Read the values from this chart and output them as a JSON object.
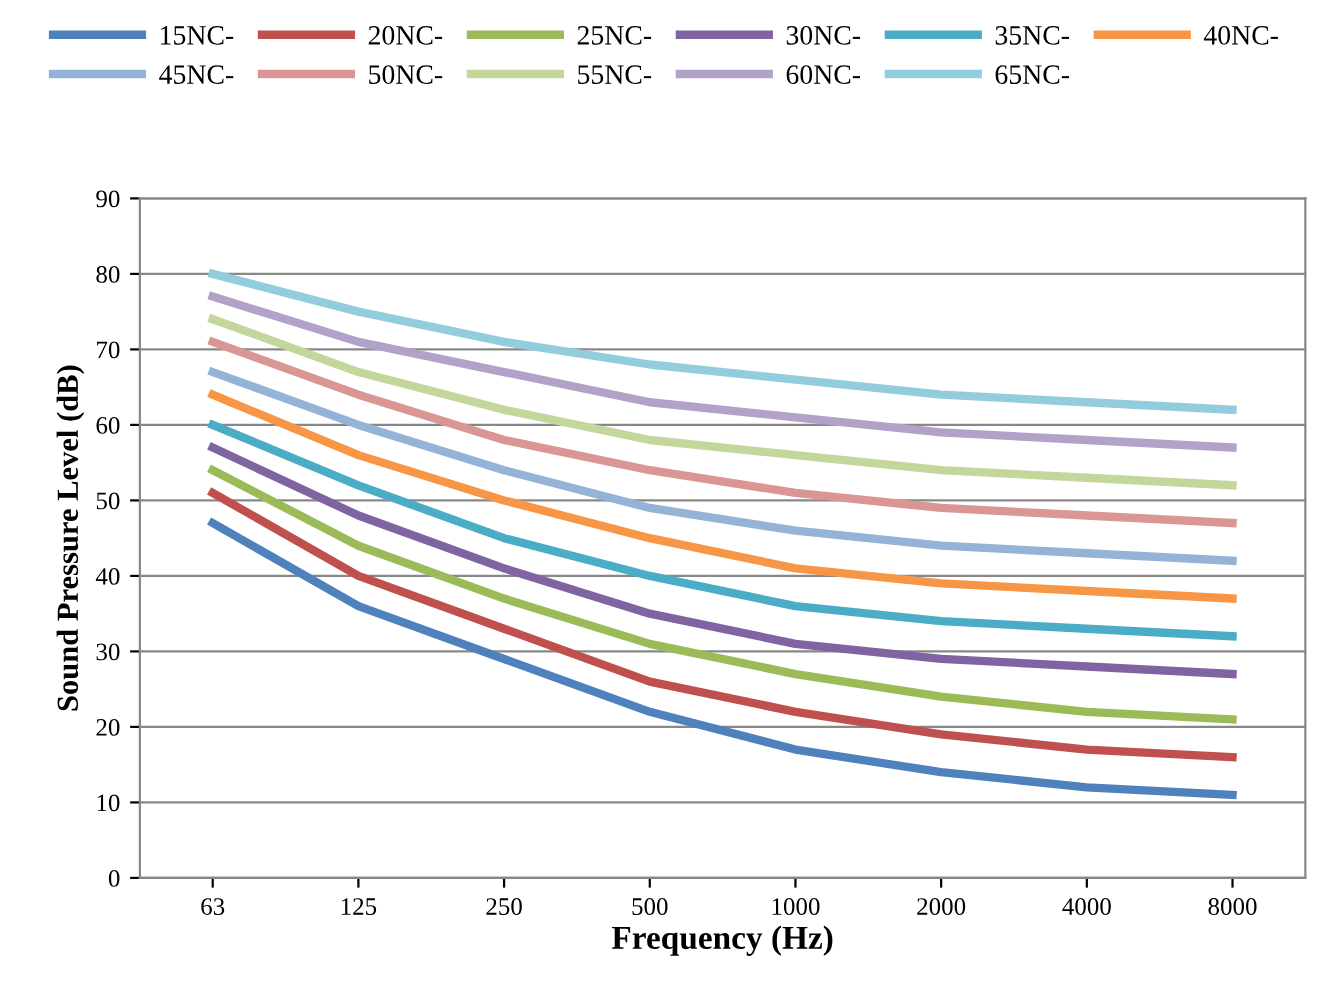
{
  "chart_data": {
    "type": "line",
    "xlabel": "Frequency (Hz)",
    "ylabel": "Sound Pressure Level (dB)",
    "categories": [
      "63",
      "125",
      "250",
      "500",
      "1000",
      "2000",
      "4000",
      "8000"
    ],
    "ylim": [
      0,
      90
    ],
    "yticks": [
      0,
      10,
      20,
      30,
      40,
      50,
      60,
      70,
      80,
      90
    ],
    "grid": "y",
    "legend": "top",
    "marker": "none",
    "line_style": "solid",
    "series": [
      {
        "name": "15NC-",
        "color": "#4f81bd",
        "values": [
          47,
          36,
          29,
          22,
          17,
          14,
          12,
          11
        ]
      },
      {
        "name": "20NC-",
        "color": "#c0504d",
        "values": [
          51,
          40,
          33,
          26,
          22,
          19,
          17,
          16
        ]
      },
      {
        "name": "25NC-",
        "color": "#9bbb59",
        "values": [
          54,
          44,
          37,
          31,
          27,
          24,
          22,
          21
        ]
      },
      {
        "name": "30NC-",
        "color": "#8064a2",
        "values": [
          57,
          48,
          41,
          35,
          31,
          29,
          28,
          27
        ]
      },
      {
        "name": "35NC-",
        "color": "#4bacc6",
        "values": [
          60,
          52,
          45,
          40,
          36,
          34,
          33,
          32
        ]
      },
      {
        "name": "40NC-",
        "color": "#f79646",
        "values": [
          64,
          56,
          50,
          45,
          41,
          39,
          38,
          37
        ]
      },
      {
        "name": "45NC-",
        "color": "#95b3d7",
        "values": [
          67,
          60,
          54,
          49,
          46,
          44,
          43,
          42
        ]
      },
      {
        "name": "50NC-",
        "color": "#d99694",
        "values": [
          71,
          64,
          58,
          54,
          51,
          49,
          48,
          47
        ]
      },
      {
        "name": "55NC-",
        "color": "#c3d69b",
        "values": [
          74,
          67,
          62,
          58,
          56,
          54,
          53,
          52
        ]
      },
      {
        "name": "60NC-",
        "color": "#b3a2c7",
        "values": [
          77,
          71,
          67,
          63,
          61,
          59,
          58,
          57
        ]
      },
      {
        "name": "65NC-",
        "color": "#93cddd",
        "values": [
          80,
          75,
          71,
          68,
          66,
          64,
          63,
          62
        ]
      }
    ]
  }
}
